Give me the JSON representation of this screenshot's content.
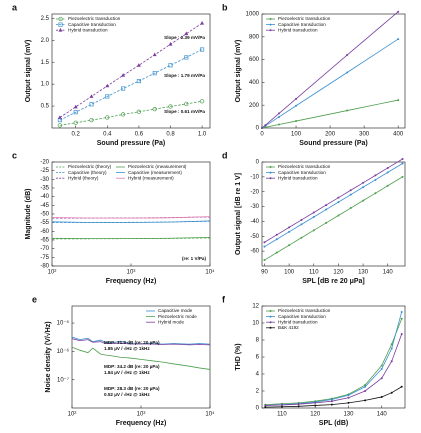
{
  "chart_data": [
    {
      "type": "line",
      "panel": "a",
      "xlabel": "Sound pressure (Pa)",
      "ylabel": "Output signal (mV)",
      "xlim": [
        0.05,
        1.05
      ],
      "ylim": [
        0,
        2.6
      ],
      "xticks": [
        0.2,
        0.4,
        0.6,
        0.8,
        {
          "value": 1,
          "label": "1.0"
        }
      ],
      "yticks": [
        0.5,
        {
          "value": 1,
          "label": "1.0"
        },
        1.5,
        {
          "value": 2,
          "label": "2.0"
        },
        2.5
      ],
      "legend": "upper left",
      "annotations": [
        "Slope : 2.39 mV/Pa",
        "Slope : 1.79 mV/Pa",
        "Slope : 0.61 mV/Pa"
      ],
      "series": [
        {
          "name": "Piezoelectric transduction",
          "color": "#4c9e4c",
          "marker": "circle",
          "dash": true,
          "x": [
            0.1,
            0.2,
            0.3,
            0.4,
            0.5,
            0.6,
            0.7,
            0.8,
            0.9,
            1.0
          ],
          "values": [
            0.06,
            0.12,
            0.18,
            0.24,
            0.31,
            0.37,
            0.43,
            0.49,
            0.55,
            0.61
          ]
        },
        {
          "name": "Capacitive transduction",
          "color": "#3a8fd0",
          "marker": "square",
          "dash": true,
          "x": [
            0.1,
            0.2,
            0.3,
            0.4,
            0.5,
            0.6,
            0.7,
            0.8,
            0.9,
            1.0
          ],
          "values": [
            0.18,
            0.36,
            0.54,
            0.72,
            0.9,
            1.07,
            1.25,
            1.43,
            1.61,
            1.79
          ]
        },
        {
          "name": "Hybrid transduction",
          "color": "#7a3f9e",
          "marker": "triangle",
          "dash": true,
          "x": [
            0.1,
            0.2,
            0.3,
            0.4,
            0.5,
            0.6,
            0.7,
            0.8,
            0.9,
            1.0
          ],
          "values": [
            0.24,
            0.48,
            0.72,
            0.96,
            1.2,
            1.43,
            1.67,
            1.91,
            2.15,
            2.39
          ]
        }
      ]
    },
    {
      "type": "line",
      "panel": "b",
      "xlabel": "Sound pressure (Pa)",
      "ylabel": "Output signal (mV)",
      "xlim": [
        0,
        420
      ],
      "ylim": [
        0,
        1000
      ],
      "xticks": [
        0,
        100,
        200,
        300,
        400
      ],
      "yticks": [
        0,
        200,
        400,
        600,
        800,
        1000
      ],
      "legend": "upper left",
      "series": [
        {
          "name": "Piezoelectric transduction",
          "color": "#4c9e4c",
          "marker": "dot",
          "x": [
            0,
            10,
            50,
            100,
            250,
            400
          ],
          "values": [
            0,
            6,
            31,
            61,
            153,
            245
          ]
        },
        {
          "name": "Capacitive transduction",
          "color": "#3a8fd0",
          "marker": "dot",
          "x": [
            0,
            10,
            50,
            100,
            250,
            400
          ],
          "values": [
            0,
            19,
            97,
            195,
            487,
            780
          ]
        },
        {
          "name": "Hybrid transduction",
          "color": "#7a3f9e",
          "marker": "dot",
          "x": [
            0,
            10,
            50,
            100,
            250,
            400
          ],
          "values": [
            0,
            25,
            128,
            256,
            640,
            1020
          ]
        }
      ]
    },
    {
      "type": "line",
      "panel": "c",
      "xlabel": "Frequency (Hz)",
      "ylabel": "Magnitude (dB)",
      "xlog": true,
      "xlim": [
        100,
        10000
      ],
      "ylim": [
        -80,
        -20
      ],
      "xticks": [
        {
          "value": 100,
          "label": "10²"
        },
        {
          "value": 1000,
          "label": "10³"
        },
        {
          "value": 10000,
          "label": "10⁴"
        }
      ],
      "yticks": [
        -80,
        -75,
        -70,
        -65,
        -60,
        -55,
        -50,
        -45,
        -40,
        -35,
        -30,
        -25,
        -20
      ],
      "legend": "upper left",
      "legend_columns": 2,
      "annotations": [
        "(re: 1 V/Pa)"
      ],
      "series": [
        {
          "name": "Piezoelectric (theory)",
          "color": "#4c9e4c",
          "marker": "none",
          "dash": true,
          "x": [
            100,
            300,
            1000,
            3000,
            10000
          ],
          "values": [
            -64.3,
            -64.3,
            -64.2,
            -64.1,
            -63.8
          ]
        },
        {
          "name": "Capacitive (theory)",
          "color": "#3a8fd0",
          "marker": "none",
          "dash": true,
          "x": [
            100,
            300,
            1000,
            3000,
            10000
          ],
          "values": [
            -54.9,
            -54.9,
            -54.8,
            -54.6,
            -54.2
          ]
        },
        {
          "name": "Hybrid (theory)",
          "color": "#7a3f9e",
          "marker": "none",
          "dash": true,
          "x": [
            100,
            300,
            1000,
            3000,
            10000
          ],
          "values": [
            -52.4,
            -52.4,
            -52.3,
            -52.1,
            -51.7
          ]
        },
        {
          "name": "Piezoelectric (measurement)",
          "color": "#4c9e4c",
          "marker": "none",
          "x": [
            100,
            300,
            1000,
            3000,
            10000
          ],
          "values": [
            -64.0,
            -64.2,
            -64.2,
            -64.0,
            -63.5
          ]
        },
        {
          "name": "Capacitive (measurement)",
          "color": "#3a8fd0",
          "marker": "none",
          "x": [
            100,
            300,
            1000,
            3000,
            10000
          ],
          "values": [
            -54.5,
            -54.9,
            -54.9,
            -54.7,
            -54.0
          ]
        },
        {
          "name": "Hybrid (measurement)",
          "color": "#e07bb0",
          "marker": "none",
          "x": [
            100,
            300,
            1000,
            3000,
            10000
          ],
          "values": [
            -52.0,
            -52.3,
            -52.4,
            -52.2,
            -51.5
          ]
        }
      ]
    },
    {
      "type": "line",
      "panel": "d",
      "xlabel": "SPL [dB re 20 μPa]",
      "ylabel": "Output signal [dB re 1 V]",
      "xlim": [
        89,
        147
      ],
      "ylim": [
        -70,
        0
      ],
      "xticks": [
        90,
        100,
        110,
        120,
        130,
        140
      ],
      "yticks": [
        -60,
        -50,
        -40,
        -30,
        -20,
        -10,
        0
      ],
      "legend": "upper left",
      "series": [
        {
          "name": "Piezoelectric transduction",
          "color": "#4c9e4c",
          "marker": "dot",
          "x": [
            90,
            95,
            100,
            105,
            110,
            115,
            120,
            125,
            130,
            135,
            140,
            146
          ],
          "values": [
            -66,
            -61,
            -56,
            -51,
            -46,
            -41,
            -36,
            -31,
            -26,
            -21,
            -16,
            -10
          ]
        },
        {
          "name": "Capacitive transduction",
          "color": "#3a8fd0",
          "marker": "dot",
          "x": [
            90,
            95,
            100,
            105,
            110,
            115,
            120,
            125,
            130,
            135,
            140,
            146
          ],
          "values": [
            -57,
            -52,
            -47,
            -42,
            -37,
            -32,
            -27,
            -22,
            -17,
            -12,
            -7,
            -1
          ]
        },
        {
          "name": "Hybrid transduction",
          "color": "#7a3f9e",
          "marker": "dot",
          "x": [
            90,
            95,
            100,
            105,
            110,
            115,
            120,
            125,
            130,
            135,
            140,
            146
          ],
          "values": [
            -54,
            -49,
            -44,
            -39,
            -34,
            -29,
            -24,
            -19,
            -14,
            -9,
            -4,
            2
          ]
        }
      ]
    },
    {
      "type": "line",
      "panel": "e",
      "xlabel": "Frequency (Hz)",
      "ylabel": "Noise density (V/√Hz)",
      "xlog": true,
      "ylog": true,
      "xlim": [
        100,
        10000
      ],
      "ylim": [
        1e-08,
        4e-05
      ],
      "xticks": [
        {
          "value": 100,
          "label": "10²"
        },
        {
          "value": 1000,
          "label": "10³"
        },
        {
          "value": 10000,
          "label": "10⁴"
        }
      ],
      "yticks": [
        {
          "value": 1e-07,
          "label": "10⁻⁷"
        },
        {
          "value": 1e-06,
          "label": "10⁻⁶"
        },
        {
          "value": 1e-05,
          "label": "10⁻⁵"
        }
      ],
      "legend": "upper right",
      "annotations": [
        "MDP: 31.8 dB (re: 20 µPa)",
        "1.85 µV / √Hz @ 1kHz",
        "MDP: 34.2 dB (re: 20 µPa)",
        "1.84 µV / √Hz @ 1kHz",
        "MDP: 28.3 dB (re: 20 µPa)",
        "0.52 µV / √Hz @ 1kHz"
      ],
      "series": [
        {
          "name": "Capacitive mode",
          "color": "#3a8fd0",
          "marker": "none",
          "x": [
            100,
            130,
            170,
            200,
            260,
            300,
            400,
            500,
            700,
            1000,
            1500,
            2000,
            3000,
            5000,
            7000,
            10000
          ],
          "values": [
            3.2e-06,
            2.6e-06,
            2.9e-06,
            2.2e-06,
            2.5e-06,
            2.1e-06,
            2e-06,
            2.3e-06,
            1.9e-06,
            1.85e-06,
            2e-06,
            1.8e-06,
            1.9e-06,
            1.8e-06,
            1.9e-06,
            1.8e-06
          ]
        },
        {
          "name": "Piezoelectric mode",
          "color": "#4c9e4c",
          "marker": "none",
          "x": [
            100,
            130,
            170,
            200,
            260,
            300,
            400,
            500,
            700,
            1000,
            1500,
            2000,
            3000,
            5000,
            7000,
            10000
          ],
          "values": [
            1.4e-06,
            1.1e-06,
            9e-07,
            1.3e-06,
            8e-07,
            7.5e-07,
            6.8e-07,
            6.2e-07,
            5.8e-07,
            5.2e-07,
            4.6e-07,
            4.2e-07,
            3.6e-07,
            3e-07,
            2.6e-07,
            2.3e-07
          ]
        },
        {
          "name": "Hybrid mode",
          "color": "#7a3f9e",
          "marker": "none",
          "x": [
            100,
            130,
            170,
            200,
            260,
            300,
            400,
            500,
            700,
            1000,
            1500,
            2000,
            3000,
            5000,
            7000,
            10000
          ],
          "values": [
            2.8e-06,
            2.4e-06,
            2.6e-06,
            2.1e-06,
            2.2e-06,
            1.9e-06,
            1.9e-06,
            2e-06,
            1.8e-06,
            1.84e-06,
            1.8e-06,
            1.75e-06,
            1.8e-06,
            1.7e-06,
            1.75e-06,
            1.7e-06
          ]
        }
      ]
    },
    {
      "type": "line",
      "panel": "f",
      "xlabel": "SPL (dB)",
      "ylabel": "THD (%)",
      "xlim": [
        104,
        147
      ],
      "ylim": [
        0,
        12
      ],
      "xticks": [
        110,
        120,
        130,
        140
      ],
      "yticks": [
        0,
        2,
        4,
        6,
        8,
        10,
        12
      ],
      "legend": "upper left",
      "series": [
        {
          "name": "Piezoelectric transduction",
          "color": "#4c9e4c",
          "marker": "dot",
          "x": [
            105,
            110,
            115,
            120,
            125,
            130,
            135,
            140,
            143,
            146
          ],
          "values": [
            0.4,
            0.5,
            0.6,
            0.8,
            1.1,
            1.6,
            2.7,
            5.0,
            7.5,
            10.5
          ]
        },
        {
          "name": "Capacitive transduction",
          "color": "#3a8fd0",
          "marker": "dot",
          "x": [
            105,
            110,
            115,
            120,
            125,
            130,
            135,
            140,
            143,
            146
          ],
          "values": [
            0.3,
            0.4,
            0.5,
            0.7,
            1.0,
            1.5,
            2.5,
            4.6,
            7.0,
            11.3
          ]
        },
        {
          "name": "Hybrid transduction",
          "color": "#7a3f9e",
          "marker": "dot",
          "x": [
            105,
            110,
            115,
            120,
            125,
            130,
            135,
            140,
            143,
            146
          ],
          "values": [
            0.3,
            0.35,
            0.45,
            0.6,
            0.8,
            1.2,
            2.0,
            3.5,
            5.5,
            8.7
          ]
        },
        {
          "name": "B&K 4192",
          "color": "#111111",
          "marker": "dot",
          "x": [
            105,
            110,
            115,
            120,
            125,
            130,
            135,
            140,
            143,
            146
          ],
          "values": [
            0.1,
            0.15,
            0.2,
            0.3,
            0.4,
            0.6,
            0.9,
            1.3,
            1.8,
            2.5
          ]
        }
      ]
    }
  ]
}
